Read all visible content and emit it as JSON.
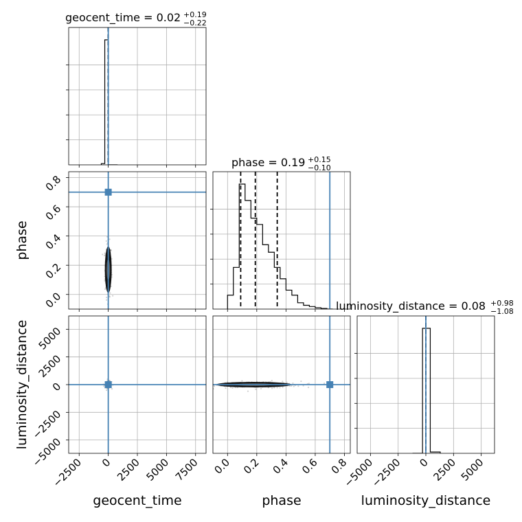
{
  "chart_data": {
    "type": "corner",
    "parameters": [
      "geocent_time",
      "phase",
      "luminosity_distance"
    ],
    "titles": [
      {
        "label": "geocent_time = 0.02",
        "upper": "+0.19",
        "lower": "−0.22"
      },
      {
        "label": "phase = 0.19",
        "upper": "+0.15",
        "lower": "−0.10"
      },
      {
        "label": "luminosity_distance = 0.08",
        "upper": "+0.98",
        "lower": "−1.08"
      }
    ],
    "axis_labels": {
      "x": [
        "geocent_time",
        "phase",
        "luminosity_distance"
      ],
      "y": [
        "phase",
        "luminosity_distance"
      ]
    },
    "ranges": {
      "geocent_time": [
        -3400,
        8400
      ],
      "phase": [
        -0.1,
        0.84
      ],
      "luminosity_distance": [
        -6200,
        6200
      ]
    },
    "ticks": {
      "geocent_time": [
        -2500,
        0,
        2500,
        5000,
        7500
      ],
      "phase": [
        0.0,
        0.2,
        0.4,
        0.6,
        0.8
      ],
      "luminosity_distance": [
        -5000,
        -2500,
        0,
        2500,
        5000
      ]
    },
    "tick_labels": {
      "geocent_time": [
        "−2500",
        "0",
        "2500",
        "5000",
        "7500"
      ],
      "phase": [
        "0.0",
        "0.2",
        "0.4",
        "0.6",
        "0.8"
      ],
      "luminosity_distance": [
        "−5000",
        "−2500",
        "0",
        "2500",
        "5000"
      ]
    },
    "truths": {
      "geocent_time": 0,
      "phase": 0.7,
      "luminosity_distance": 0
    },
    "quantiles": {
      "geocent_time": [
        -0.2,
        0.02,
        0.21
      ],
      "phase": [
        0.09,
        0.19,
        0.34
      ],
      "luminosity_distance": [
        -1.0,
        0.08,
        1.06
      ]
    },
    "histograms": {
      "geocent_time": {
        "edges": [
          -600,
          -300,
          0,
          500,
          800
        ],
        "counts": [
          0.01,
          1.0,
          0.0,
          0.0
        ]
      },
      "phase": {
        "edges": [
          0.0,
          0.04,
          0.08,
          0.12,
          0.16,
          0.2,
          0.24,
          0.28,
          0.32,
          0.36,
          0.4,
          0.44,
          0.48,
          0.52,
          0.56,
          0.6,
          0.64,
          0.68,
          0.72
        ],
        "counts": [
          0.11,
          0.33,
          0.99,
          0.86,
          0.72,
          0.67,
          0.51,
          0.45,
          0.33,
          0.24,
          0.15,
          0.11,
          0.05,
          0.03,
          0.02,
          0.01,
          0.005,
          0.0
        ]
      },
      "luminosity_distance": {
        "edges": [
          -1200,
          -300,
          400,
          1300
        ],
        "counts": [
          0.0,
          0.98,
          0.01
        ]
      }
    },
    "grid": true
  }
}
